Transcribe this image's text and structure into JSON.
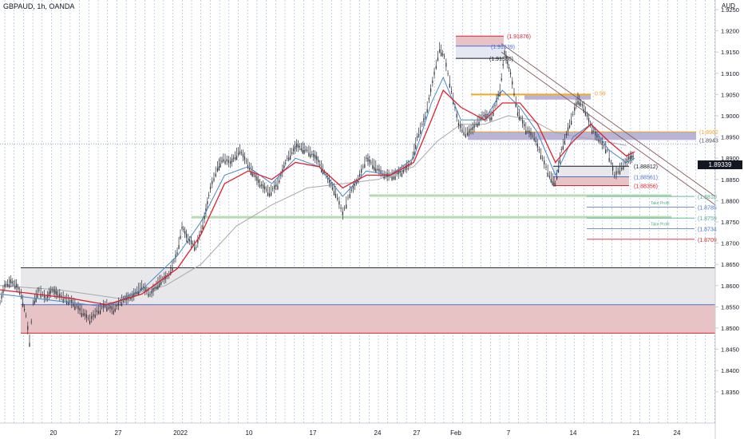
{
  "header": {
    "title": "GBPAUD, 1h, OANDA",
    "unit": "AUD"
  },
  "last_price": "1.89339",
  "colors": {
    "candle": "#2a2e39",
    "ma_fast": "#4a86c5",
    "ma_mid": "#e0202e",
    "ma_slow": "#a9a9a9",
    "red_zone": "#e8c3c6",
    "grey_zone": "#e8e8ea",
    "purple_zone": "#b9b3d6",
    "green_line": "#b6dcb1",
    "orange": "#f5a623",
    "blue_line": "#4a6fd6",
    "red_line": "#e0202e"
  },
  "chart_data": {
    "type": "line",
    "title": "GBPAUD, 1h, OANDA",
    "ylabel": "AUD",
    "ylim": [
      1.83,
      1.93
    ],
    "x_ticks": [
      "20",
      "27",
      "2022",
      "10",
      "17",
      "24",
      "27",
      "Feb",
      "7",
      "14",
      "21",
      "24"
    ],
    "y_ticks": [
      "1.9250",
      "1.9200",
      "1.9150",
      "1.9100",
      "1.9050",
      "1.9000",
      "1.8950",
      "1.8900",
      "1.8850",
      "1.8800",
      "1.8750",
      "1.8700",
      "1.8650",
      "1.8600",
      "1.8550",
      "1.8500",
      "1.8450",
      "1.8400",
      "1.8350"
    ],
    "price_points": [
      [
        0,
        1.856
      ],
      [
        0.4,
        1.86
      ],
      [
        0.9,
        1.861
      ],
      [
        1.4,
        1.86
      ],
      [
        1.8,
        1.858
      ],
      [
        2.2,
        1.853
      ],
      [
        2.5,
        1.847
      ],
      [
        2.8,
        1.856
      ],
      [
        3.3,
        1.859
      ],
      [
        3.9,
        1.857
      ],
      [
        4.4,
        1.859
      ],
      [
        4.9,
        1.858
      ],
      [
        5.5,
        1.857
      ],
      [
        6.2,
        1.856
      ],
      [
        6.9,
        1.854
      ],
      [
        7.6,
        1.852
      ],
      [
        8.2,
        1.854
      ],
      [
        8.9,
        1.8555
      ],
      [
        9.6,
        1.8545
      ],
      [
        10.3,
        1.8565
      ],
      [
        11.2,
        1.8575
      ],
      [
        12.0,
        1.86
      ],
      [
        12.7,
        1.858
      ],
      [
        13.5,
        1.861
      ],
      [
        14.3,
        1.8625
      ],
      [
        15.0,
        1.868
      ],
      [
        15.4,
        1.874
      ],
      [
        15.9,
        1.871
      ],
      [
        16.6,
        1.869
      ],
      [
        17.3,
        1.876
      ],
      [
        17.8,
        1.883
      ],
      [
        18.4,
        1.888
      ],
      [
        18.9,
        1.89
      ],
      [
        19.5,
        1.889
      ],
      [
        20.3,
        1.892
      ],
      [
        21.1,
        1.888
      ],
      [
        22.0,
        1.884
      ],
      [
        22.8,
        1.882
      ],
      [
        23.5,
        1.884
      ],
      [
        24.3,
        1.89
      ],
      [
        25.1,
        1.893
      ],
      [
        26.0,
        1.892
      ],
      [
        26.8,
        1.89
      ],
      [
        27.6,
        1.886
      ],
      [
        28.4,
        1.882
      ],
      [
        29.0,
        1.877
      ],
      [
        29.6,
        1.882
      ],
      [
        30.3,
        1.885
      ],
      [
        31.0,
        1.89
      ],
      [
        31.8,
        1.888
      ],
      [
        32.5,
        1.886
      ],
      [
        33.3,
        1.886
      ],
      [
        34.0,
        1.887
      ],
      [
        34.8,
        1.889
      ],
      [
        35.3,
        1.895
      ],
      [
        36.0,
        1.9
      ],
      [
        36.6,
        1.908
      ],
      [
        37.2,
        1.916
      ],
      [
        37.6,
        1.914
      ],
      [
        38.2,
        1.906
      ],
      [
        38.8,
        1.898
      ],
      [
        39.4,
        1.896
      ],
      [
        40.0,
        1.897
      ],
      [
        40.8,
        1.9
      ],
      [
        41.6,
        1.9
      ],
      [
        42.3,
        1.906
      ],
      [
        42.7,
        1.915
      ],
      [
        43.2,
        1.91
      ],
      [
        43.8,
        1.901
      ],
      [
        44.5,
        1.897
      ],
      [
        45.2,
        1.895
      ],
      [
        45.9,
        1.89
      ],
      [
        46.5,
        1.886
      ],
      [
        47.0,
        1.884
      ],
      [
        47.5,
        1.892
      ],
      [
        48.2,
        1.898
      ],
      [
        48.9,
        1.904
      ],
      [
        49.4,
        1.902
      ],
      [
        50.1,
        1.897
      ],
      [
        50.8,
        1.894
      ],
      [
        51.4,
        1.892
      ],
      [
        52.0,
        1.886
      ],
      [
        52.6,
        1.888
      ],
      [
        53.2,
        1.89
      ],
      [
        53.7,
        1.8905
      ]
    ],
    "ma_fast_points": [
      [
        0,
        1.858
      ],
      [
        3,
        1.857
      ],
      [
        6,
        1.856
      ],
      [
        9,
        1.855
      ],
      [
        12,
        1.859
      ],
      [
        15,
        1.867
      ],
      [
        17,
        1.875
      ],
      [
        19,
        1.886
      ],
      [
        21,
        1.888
      ],
      [
        23,
        1.884
      ],
      [
        25,
        1.89
      ],
      [
        27,
        1.888
      ],
      [
        29,
        1.881
      ],
      [
        31,
        1.887
      ],
      [
        33,
        1.886
      ],
      [
        35,
        1.89
      ],
      [
        36.5,
        1.903
      ],
      [
        37.5,
        1.909
      ],
      [
        39,
        1.899
      ],
      [
        41,
        1.899
      ],
      [
        42.5,
        1.906
      ],
      [
        44,
        1.902
      ],
      [
        45.5,
        1.896
      ],
      [
        47,
        1.886
      ],
      [
        48.5,
        1.895
      ],
      [
        50,
        1.898
      ],
      [
        51.5,
        1.892
      ],
      [
        53,
        1.889
      ],
      [
        53.7,
        1.89
      ]
    ],
    "ma_mid_points": [
      [
        0,
        1.859
      ],
      [
        3,
        1.858
      ],
      [
        6,
        1.857
      ],
      [
        9,
        1.8555
      ],
      [
        12,
        1.858
      ],
      [
        15,
        1.864
      ],
      [
        17,
        1.872
      ],
      [
        19,
        1.884
      ],
      [
        21,
        1.887
      ],
      [
        23,
        1.885
      ],
      [
        25,
        1.889
      ],
      [
        27,
        1.888
      ],
      [
        29,
        1.883
      ],
      [
        31,
        1.886
      ],
      [
        33,
        1.886
      ],
      [
        35,
        1.889
      ],
      [
        36.5,
        1.899
      ],
      [
        37.5,
        1.906
      ],
      [
        39,
        1.902
      ],
      [
        41,
        1.899
      ],
      [
        42.5,
        1.903
      ],
      [
        44,
        1.903
      ],
      [
        45.5,
        1.898
      ],
      [
        47,
        1.889
      ],
      [
        48.5,
        1.894
      ],
      [
        50,
        1.898
      ],
      [
        51.5,
        1.894
      ],
      [
        53,
        1.8905
      ],
      [
        53.7,
        1.8915
      ]
    ],
    "ma_slow_points": [
      [
        0,
        1.86
      ],
      [
        5,
        1.859
      ],
      [
        10,
        1.857
      ],
      [
        14,
        1.86
      ],
      [
        17,
        1.865
      ],
      [
        20,
        1.874
      ],
      [
        23,
        1.879
      ],
      [
        26,
        1.883
      ],
      [
        29,
        1.884
      ],
      [
        32,
        1.885
      ],
      [
        35,
        1.888
      ],
      [
        37,
        1.894
      ],
      [
        39,
        1.898
      ],
      [
        41,
        1.898
      ],
      [
        43,
        1.9
      ],
      [
        45,
        1.899
      ],
      [
        47,
        1.896
      ],
      [
        49,
        1.895
      ],
      [
        51,
        1.894
      ],
      [
        53,
        1.893
      ]
    ],
    "annotations": [
      {
        "label": "(1.91876)",
        "value": 1.91876,
        "color": "#e0202e"
      },
      {
        "label": "(1.91639)",
        "value": 1.91639,
        "color": "#4a6fd6"
      },
      {
        "label": "(1.91350)",
        "value": 1.9135,
        "color": "#131722"
      },
      {
        "label": "0.59",
        "value": 1.905,
        "color": "#f5a623"
      },
      {
        "label": "(1.8962",
        "value": 1.8962,
        "color": "#f5a623"
      },
      {
        "label": "(1.8943",
        "value": 1.8943,
        "color": "#4a4a6a"
      },
      {
        "label": "(1.88812)",
        "value": 1.88812,
        "color": "#131722"
      },
      {
        "label": "(1.88561)",
        "value": 1.88561,
        "color": "#4a6fd6"
      },
      {
        "label": "(1.88356)",
        "value": 1.88356,
        "color": "#e0202e"
      }
    ],
    "take_profits": [
      {
        "label": "(1.8810",
        "value": 1.881,
        "color": "#4caf8f"
      },
      {
        "label": "Take Profit",
        "value": 1.8797,
        "color": "#4caf8f"
      },
      {
        "label": "(1.8785",
        "value": 1.8785,
        "color": "#4a6fd6"
      },
      {
        "label": "(1.8759",
        "value": 1.8759,
        "color": "#4caf8f"
      },
      {
        "label": "Take Profit",
        "value": 1.8747,
        "color": "#4caf8f"
      },
      {
        "label": "(1.8734",
        "value": 1.8734,
        "color": "#4a6fd6"
      },
      {
        "label": "(1.8709",
        "value": 1.8709,
        "color": "#e0202e"
      }
    ]
  }
}
